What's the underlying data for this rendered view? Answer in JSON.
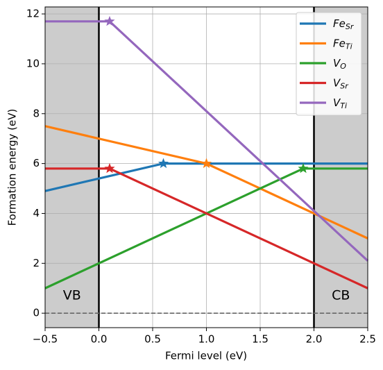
{
  "chart_data": {
    "type": "line",
    "xlabel": "Fermi level (eV)",
    "ylabel": "Formation energy (eV)",
    "xlim": [
      -0.5,
      2.5
    ],
    "ylim": [
      -0.58,
      12.28
    ],
    "xticks": [
      {
        "value": -0.5,
        "label": "−0.5"
      },
      {
        "value": 0,
        "label": "0.0"
      },
      {
        "value": 0.5,
        "label": "0.5"
      },
      {
        "value": 1,
        "label": "1.0"
      },
      {
        "value": 1.5,
        "label": "1.5"
      },
      {
        "value": 2,
        "label": "2.0"
      },
      {
        "value": 2.5,
        "label": "2.5"
      }
    ],
    "yticks": [
      0,
      2,
      4,
      6,
      8,
      10,
      12
    ],
    "grid": true,
    "legend": "upper right",
    "bands": [
      {
        "label": "VB",
        "xlim": [
          -0.5,
          0
        ]
      },
      {
        "label": "CB",
        "xlim": [
          2,
          2.5
        ]
      }
    ],
    "hline": 0,
    "series": [
      {
        "name": "Fe",
        "subscript": "Sr",
        "color": "#1f77b4",
        "x": [
          -0.5,
          0.6,
          2.5
        ],
        "values": [
          4.9,
          6.0,
          6.0
        ],
        "star": [
          0.6,
          6.0
        ]
      },
      {
        "name": "Fe",
        "subscript": "Ti",
        "color": "#ff7f0e",
        "x": [
          -0.5,
          1.0,
          2.5
        ],
        "values": [
          7.5,
          6.0,
          3.0
        ],
        "star": [
          1.0,
          6.0
        ]
      },
      {
        "name": "V",
        "subscript": "O",
        "color": "#2ca02c",
        "x": [
          -0.5,
          1.9,
          2.5
        ],
        "values": [
          1.0,
          5.8,
          5.8
        ],
        "star": [
          1.9,
          5.8
        ]
      },
      {
        "name": "V",
        "subscript": "Sr",
        "color": "#d62728",
        "x": [
          -0.5,
          0.1,
          2.5
        ],
        "values": [
          5.8,
          5.8,
          1.0
        ],
        "star": [
          0.1,
          5.8
        ]
      },
      {
        "name": "V",
        "subscript": "Ti",
        "color": "#9467bd",
        "x": [
          -0.5,
          0.1,
          2.5
        ],
        "values": [
          11.7,
          11.7,
          2.1
        ],
        "star": [
          0.1,
          11.7
        ]
      }
    ]
  }
}
